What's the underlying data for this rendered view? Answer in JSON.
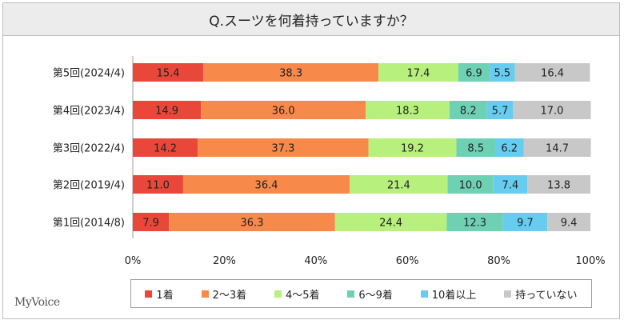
{
  "chart_data": {
    "type": "bar",
    "stacked": true,
    "orientation": "horizontal",
    "title": "Q.スーツを何着持っていますか？",
    "categories": [
      "第5回(2024/4)",
      "第4回(2023/4)",
      "第3回(2022/4)",
      "第2回(2019/4)",
      "第1回(2014/8)"
    ],
    "series": [
      {
        "name": "1着",
        "color": "#e8473a",
        "values": [
          15.4,
          14.9,
          14.2,
          11.0,
          7.9
        ]
      },
      {
        "name": "2〜3着",
        "color": "#f7894a",
        "values": [
          38.3,
          36.0,
          37.3,
          36.4,
          36.3
        ]
      },
      {
        "name": "4〜5着",
        "color": "#b7f07c",
        "values": [
          17.4,
          18.3,
          19.2,
          21.4,
          24.4
        ]
      },
      {
        "name": "6〜9着",
        "color": "#6fd1b4",
        "values": [
          6.9,
          8.2,
          8.5,
          10.0,
          12.3
        ]
      },
      {
        "name": "10着以上",
        "color": "#66cdf0",
        "values": [
          5.5,
          5.7,
          6.2,
          7.4,
          9.7
        ]
      },
      {
        "name": "持っていない",
        "color": "#c8c8c8",
        "values": [
          16.4,
          17.0,
          14.7,
          13.8,
          9.4
        ]
      }
    ],
    "x_ticks": [
      "0%",
      "20%",
      "40%",
      "60%",
      "80%",
      "100%"
    ],
    "xlim": [
      0,
      100
    ],
    "legend_position": "bottom",
    "grid": false
  },
  "logo": "MyVoice"
}
